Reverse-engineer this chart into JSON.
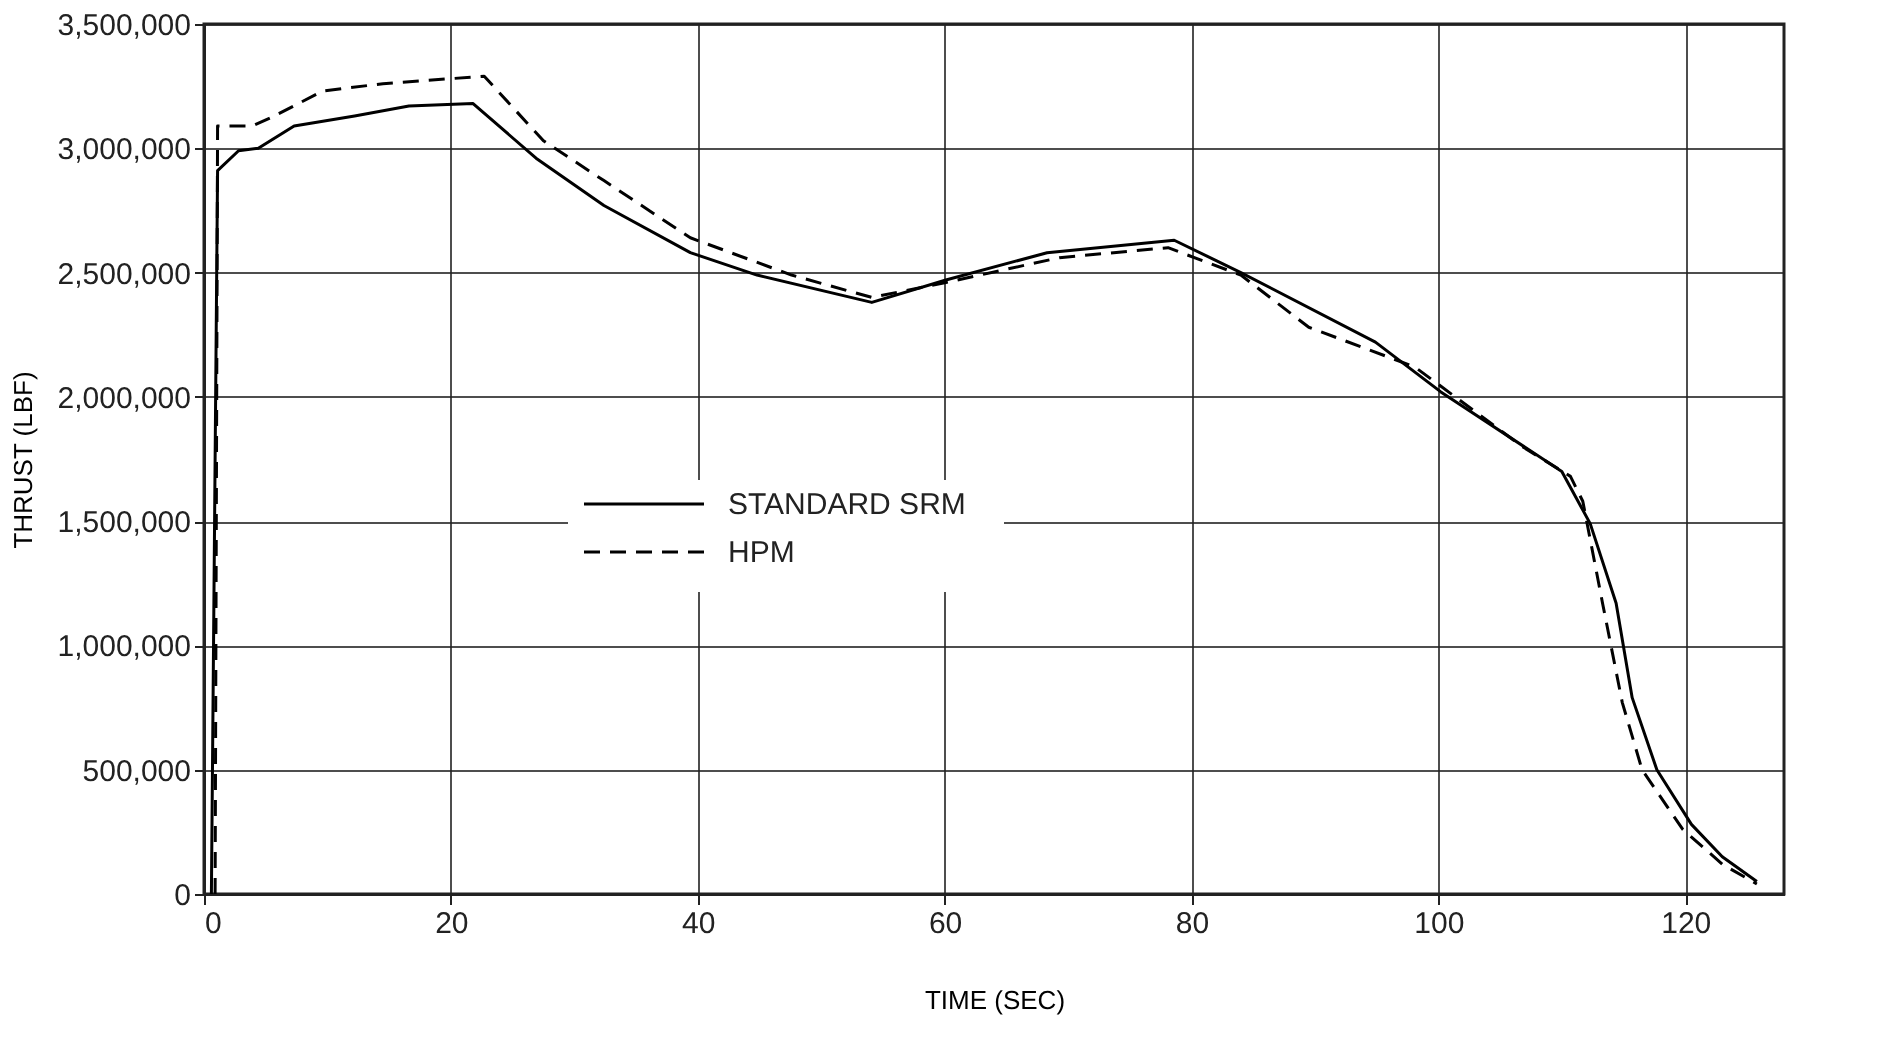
{
  "chart_data": {
    "type": "line",
    "xlabel": "TIME (SEC)",
    "ylabel": "THRUST (LBF)",
    "xlim": [
      0,
      128
    ],
    "xticks": [
      0,
      20,
      40,
      60,
      80,
      100,
      120
    ],
    "ylim": [
      0,
      3500000
    ],
    "yticks": [
      0,
      {
        "value": 500000,
        "label": "500,000"
      },
      {
        "value": 1000000,
        "label": "1,000,000"
      },
      {
        "value": 1500000,
        "label": "1,500,000"
      },
      {
        "value": 2000000,
        "label": "2,000,000"
      },
      {
        "value": 2500000,
        "label": "2,500,000"
      },
      {
        "value": 3000000,
        "label": "3,000,000"
      },
      {
        "value": 3500000,
        "label": "3,500,000"
      }
    ],
    "grid": true,
    "legend": "left",
    "marker": "none",
    "series": [
      {
        "name": "STANDARD SRM",
        "color": "#000000",
        "line_style": "solid",
        "x": [
          0.6,
          1.1,
          2.8,
          4.4,
          7.3,
          12.2,
          16.6,
          21.8,
          26.9,
          32.4,
          39.4,
          44.8,
          54.1,
          60.1,
          68.3,
          78.6,
          84,
          94.9,
          100.2,
          110,
          112.3,
          114.4,
          115.7,
          117.7,
          120.5,
          123,
          125.8
        ],
        "values": [
          0,
          2910000,
          2990000,
          3000000,
          3090000,
          3130000,
          3170000,
          3180000,
          2960000,
          2770000,
          2580000,
          2490000,
          2380000,
          2470000,
          2580000,
          2630000,
          2500000,
          2220000,
          2020000,
          1700000,
          1490000,
          1170000,
          790000,
          500000,
          280000,
          150000,
          50000
        ]
      },
      {
        "name": "HPM",
        "color": "#000000",
        "line_style": "dashed",
        "x": [
          0.9,
          1.1,
          3.9,
          5.7,
          9.6,
          14.5,
          22.7,
          27.5,
          32.4,
          39.4,
          47.6,
          54.1,
          60.1,
          69.3,
          78.1,
          84,
          89.5,
          98.1,
          106.8,
          110.7,
          111.7,
          113.3,
          114.9,
          116.5,
          119.8,
          123,
          125.8
        ],
        "values": [
          0,
          3090000,
          3090000,
          3130000,
          3230000,
          3260000,
          3290000,
          3030000,
          2870000,
          2640000,
          2490000,
          2400000,
          2460000,
          2560000,
          2600000,
          2490000,
          2280000,
          2120000,
          1800000,
          1680000,
          1580000,
          1170000,
          770000,
          500000,
          260000,
          120000,
          40000
        ]
      }
    ]
  }
}
